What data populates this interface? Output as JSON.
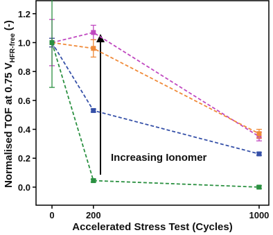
{
  "chart_data": {
    "type": "line",
    "xlabel": "Accelerated Stress Test (Cycles)",
    "ylabel": {
      "text": "Normalised TOF at 0.75 V",
      "sub": "HFR-free",
      "suffix": "(-)"
    },
    "annotation": "Increasing Ionomer",
    "x": [
      0,
      200,
      1000
    ],
    "xlim": [
      -77,
      1047
    ],
    "xticks": [
      0,
      200,
      1000
    ],
    "ylim": [
      -0.125,
      1.29
    ],
    "yticks": [
      {
        "value": 0,
        "label": "0.0"
      },
      {
        "value": 0.2,
        "label": "0.2"
      },
      {
        "value": 0.4,
        "label": "0.4"
      },
      {
        "value": 0.6,
        "label": "0.6"
      },
      {
        "value": 0.8,
        "label": "0.8"
      },
      {
        "value": 1.0,
        "label": "1.0"
      },
      {
        "value": 1.2,
        "label": "1.2"
      }
    ],
    "series": [
      {
        "color": "#c048c0",
        "values": [
          1.0,
          1.07,
          0.35
        ],
        "errors": [
          0.16,
          0.05,
          0.03
        ]
      },
      {
        "color": "#f08a38",
        "values": [
          1.0,
          0.96,
          0.37
        ],
        "errors": [
          0.03,
          0.06,
          0.03
        ]
      },
      {
        "color": "#3550a8",
        "values": [
          1.0,
          0.53,
          0.23
        ],
        "errors": [
          0.03,
          0.01,
          0.01
        ]
      },
      {
        "color": "#2a9040",
        "values": [
          1.0,
          0.045,
          0.0
        ],
        "errors": [
          0.31,
          0.01,
          0.01
        ]
      }
    ]
  }
}
